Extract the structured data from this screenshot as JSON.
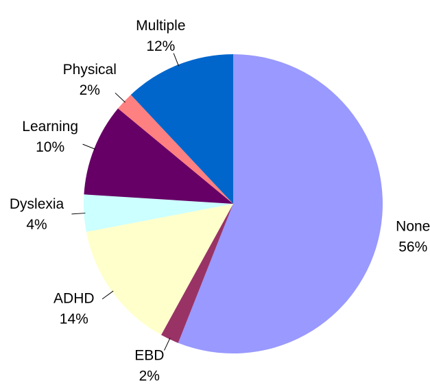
{
  "chart_data": {
    "type": "pie",
    "categories": [
      "None",
      "EBD",
      "ADHD",
      "Dyslexia",
      "Learning",
      "Physical",
      "Multiple"
    ],
    "values": [
      56,
      2,
      14,
      4,
      10,
      2,
      12
    ],
    "value_labels": [
      "56%",
      "2%",
      "14%",
      "4%",
      "10%",
      "2%",
      "12%"
    ],
    "colors": [
      "#9999ff",
      "#993366",
      "#ffffcc",
      "#ccffff",
      "#660066",
      "#ff8080",
      "#0066cc"
    ]
  }
}
